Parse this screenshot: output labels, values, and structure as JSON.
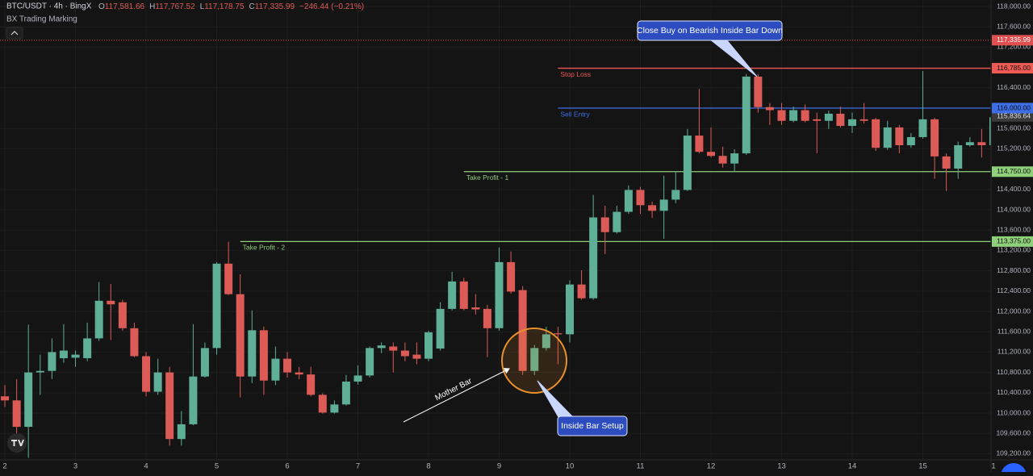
{
  "chart_data": {
    "type": "candlestick",
    "title": "BTC/USDT · 4h · BingX",
    "ohlc_legend": [
      [
        "O",
        "117,581.66"
      ],
      [
        "H",
        "117,767.52"
      ],
      [
        "L",
        "117,178.75"
      ],
      [
        "C",
        "117,335.99"
      ]
    ],
    "change": "−246.44 (−0.21%)",
    "subtitle": "BX Trading Marking",
    "up_color": "#5fae97",
    "down_color": "#dd5b57",
    "grid": true,
    "xlim": [
      1.931,
      15.966
    ],
    "ylim": [
      109080,
      118127
    ],
    "xticks": [
      2,
      3,
      4,
      5,
      6,
      7,
      8,
      9,
      10,
      11,
      12,
      13,
      14,
      15,
      {
        "value": 16,
        "label": "1"
      }
    ],
    "yticks": [
      {
        "value": 118000,
        "label": "118,000.00"
      },
      {
        "value": 117600,
        "label": "117,600.00"
      },
      {
        "value": 117200,
        "label": "117,200.00"
      },
      {
        "value": 116400,
        "label": "116,400.00"
      },
      {
        "value": 115600,
        "label": "115,600.00"
      },
      {
        "value": 115200,
        "label": "115,200.00"
      },
      {
        "value": 114400,
        "label": "114,400.00"
      },
      {
        "value": 114000,
        "label": "114,000.00"
      },
      {
        "value": 113600,
        "label": "113,600.00"
      },
      {
        "value": 113200,
        "label": "113,200.00"
      },
      {
        "value": 112800,
        "label": "112,800.00"
      },
      {
        "value": 112400,
        "label": "112,400.00"
      },
      {
        "value": 112000,
        "label": "112,000.00"
      },
      {
        "value": 111600,
        "label": "111,600.00"
      },
      {
        "value": 111200,
        "label": "111,200.00"
      },
      {
        "value": 110800,
        "label": "110,800.00"
      },
      {
        "value": 110400,
        "label": "110,400.00"
      },
      {
        "value": 110000,
        "label": "110,000.00"
      },
      {
        "value": 109600,
        "label": "109,600.00"
      },
      {
        "value": 109200,
        "label": "109,200.00"
      }
    ],
    "x": [
      2,
      2.167,
      2.333,
      2.5,
      2.667,
      2.833,
      3,
      3.167,
      3.333,
      3.5,
      3.667,
      3.833,
      4,
      4.167,
      4.333,
      4.5,
      4.667,
      4.833,
      5,
      5.167,
      5.333,
      5.5,
      5.667,
      5.833,
      6,
      6.167,
      6.333,
      6.5,
      6.667,
      6.833,
      7,
      7.167,
      7.333,
      7.5,
      7.667,
      7.833,
      8,
      8.167,
      8.333,
      8.5,
      8.667,
      8.833,
      9,
      9.167,
      9.333,
      9.5,
      9.667,
      9.833,
      10,
      10.167,
      10.333,
      10.5,
      10.667,
      10.833,
      11,
      11.167,
      11.333,
      11.5,
      11.667,
      11.833,
      12,
      12.167,
      12.333,
      12.5,
      12.667,
      12.833,
      13,
      13.167,
      13.333,
      13.5,
      13.667,
      13.833,
      14,
      14.167,
      14.333,
      14.5,
      14.667,
      14.833,
      15,
      15.167,
      15.333,
      15.5,
      15.667,
      15.833,
      16
    ],
    "open": [
      110330,
      110250,
      109730,
      110800,
      110830,
      111080,
      111090,
      111080,
      111470,
      112210,
      112180,
      111670,
      111120,
      110420,
      110800,
      109490,
      109780,
      110720,
      111280,
      112940,
      112340,
      110720,
      111630,
      110640,
      111070,
      110800,
      110760,
      110360,
      110010,
      110170,
      110620,
      110740,
      111280,
      111310,
      111230,
      111150,
      111070,
      111270,
      112050,
      112590,
      112080,
      112050,
      111670,
      112970,
      112420,
      110830,
      111280,
      111570,
      111550,
      112530,
      112260,
      113850,
      113560,
      113960,
      114390,
      114090,
      113980,
      114200,
      114390,
      115460,
      115140,
      115060,
      114910,
      115110,
      116620,
      116020,
      115960,
      115750,
      115960,
      115780,
      115750,
      115890,
      115650,
      115780,
      115780,
      115220,
      115620,
      115270,
      115430,
      115780,
      115050,
      114810,
      115270,
      115330,
      115270
    ],
    "high": [
      110550,
      110670,
      111740,
      111150,
      111470,
      111750,
      111230,
      111780,
      112580,
      112540,
      112230,
      111780,
      111200,
      111070,
      110910,
      110040,
      111750,
      111390,
      112970,
      113370,
      112730,
      112020,
      111700,
      111310,
      111200,
      110910,
      110910,
      110390,
      110250,
      110750,
      110940,
      111310,
      111390,
      111390,
      111390,
      111390,
      111620,
      112180,
      112780,
      112660,
      112340,
      112130,
      113260,
      113180,
      112500,
      111340,
      111700,
      111700,
      112610,
      112810,
      114290,
      114080,
      114080,
      114480,
      114450,
      114160,
      114670,
      114760,
      115590,
      116380,
      115620,
      115240,
      115190,
      116670,
      116670,
      116100,
      116100,
      116030,
      116070,
      115910,
      115950,
      116030,
      115910,
      116100,
      115810,
      115750,
      115670,
      115510,
      116730,
      115810,
      115110,
      115340,
      115430,
      115590,
      115820
    ],
    "low": [
      110120,
      109480,
      109120,
      110360,
      110670,
      110990,
      110910,
      111020,
      111420,
      111440,
      111620,
      111100,
      110330,
      110360,
      109360,
      109360,
      109760,
      110700,
      111150,
      112320,
      110310,
      110590,
      110360,
      110550,
      110700,
      110670,
      110330,
      109990,
      109990,
      110150,
      110560,
      110700,
      111180,
      110800,
      111020,
      110960,
      111020,
      111230,
      112020,
      112020,
      111940,
      111100,
      111620,
      112350,
      110750,
      110750,
      111230,
      110960,
      111390,
      112230,
      112230,
      113130,
      113530,
      113920,
      113920,
      113840,
      113430,
      114130,
      114370,
      115110,
      115030,
      114830,
      114750,
      115080,
      115910,
      115670,
      115670,
      115720,
      115720,
      115110,
      115590,
      115620,
      115510,
      115700,
      115160,
      115180,
      115110,
      115220,
      115400,
      114610,
      114370,
      114610,
      115240,
      115030,
      115270
    ],
    "close": [
      110250,
      109730,
      110800,
      110830,
      111200,
      111230,
      111150,
      111470,
      112210,
      112140,
      111670,
      111120,
      110420,
      110800,
      109490,
      109780,
      110720,
      111280,
      112940,
      112340,
      110720,
      111630,
      110640,
      111070,
      110800,
      110760,
      110360,
      110010,
      110170,
      110620,
      110740,
      111280,
      111330,
      111230,
      111120,
      111070,
      111590,
      112050,
      112590,
      112050,
      112040,
      111670,
      112970,
      112390,
      110830,
      111280,
      111550,
      111550,
      112530,
      112260,
      113850,
      113560,
      113960,
      114390,
      114090,
      113980,
      114200,
      114390,
      115460,
      115140,
      115060,
      114910,
      115110,
      116620,
      116020,
      115960,
      115750,
      115960,
      115750,
      115750,
      115890,
      115650,
      115780,
      115750,
      115220,
      115620,
      115270,
      115430,
      115780,
      115050,
      114810,
      115270,
      115330,
      115270,
      115820
    ],
    "levels": [
      {
        "name": "Stop Loss",
        "value": 116785,
        "label": "116,785.00",
        "color": "#f05a55",
        "x_start": 9.833
      },
      {
        "name": "Sell Entry",
        "value": 116000,
        "label": "116,000.00",
        "color": "#3d6fe8",
        "x_start": 9.833
      },
      {
        "name": "Take Profit - 1",
        "value": 114750,
        "label": "114,750.00",
        "color": "#8fd07a",
        "x_start": 8.5
      },
      {
        "name": "Take Profit - 2",
        "value": 113375,
        "label": "113,375.00",
        "color": "#8fd07a",
        "x_start": 5.333
      }
    ],
    "last_price": {
      "value": 117335.99,
      "label": "117,335.99",
      "color": "#e05050"
    },
    "current_price": {
      "value": 115836.64,
      "label": "115,836.64",
      "color": "#3a3a3a"
    },
    "annotations": [
      {
        "text": "Close Buy on Bearish Inside Bar Down"
      },
      {
        "text": "Inside Bar Setup"
      },
      {
        "text": "Mother Bar"
      }
    ]
  }
}
